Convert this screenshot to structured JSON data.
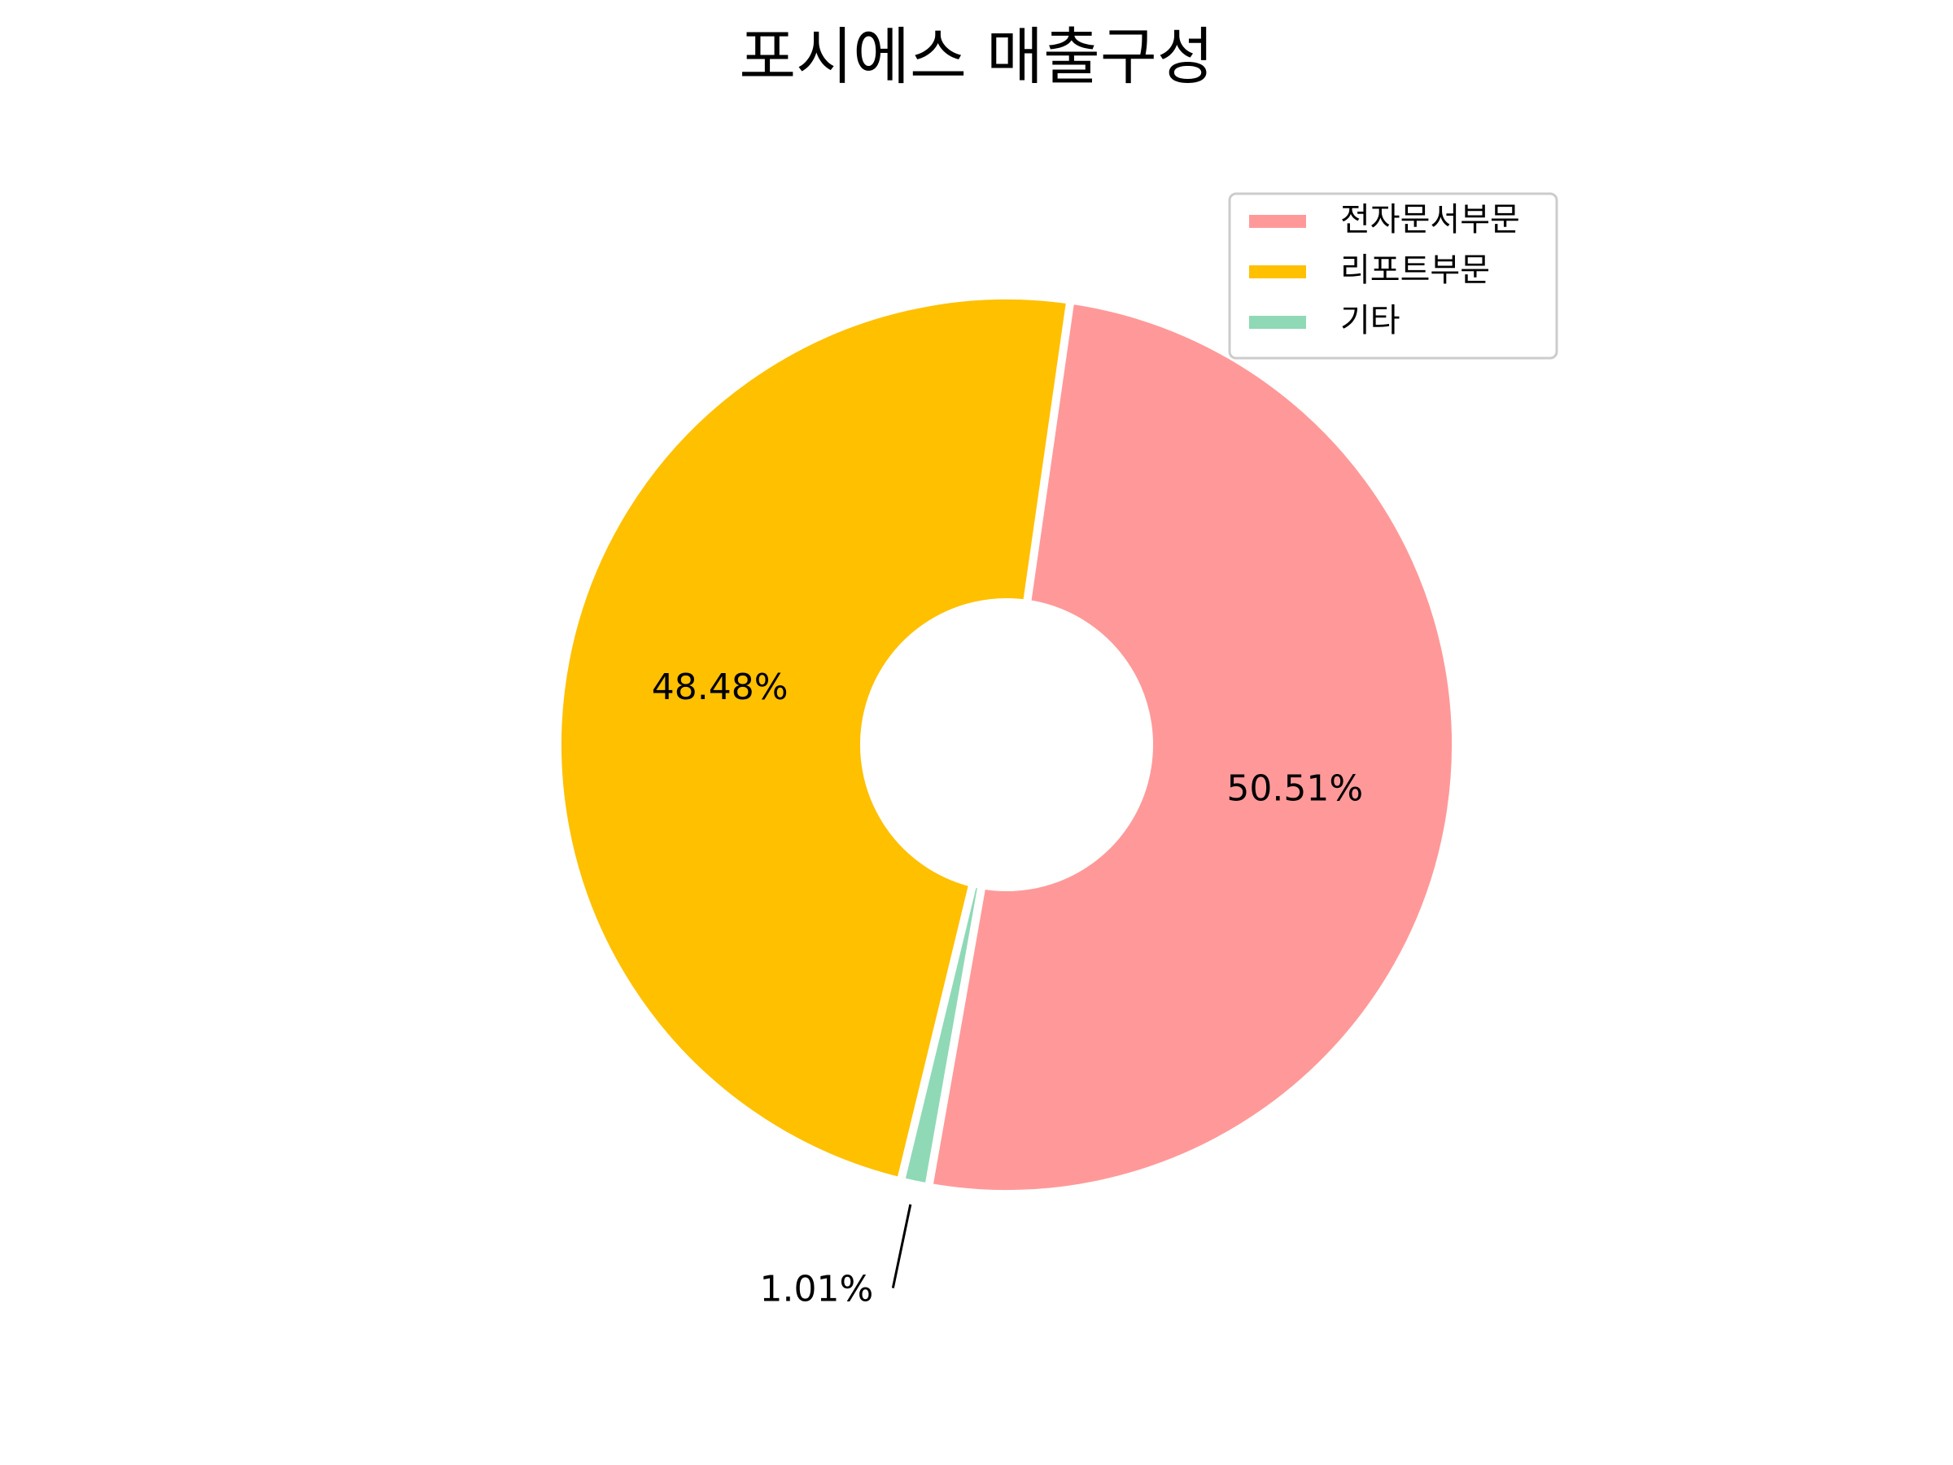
{
  "chart_data": {
    "type": "pie",
    "title": "포시에스 매출구성",
    "donut": true,
    "categories": [
      "전자문서부문",
      "리포트부문",
      "기타"
    ],
    "values": [
      50.51,
      48.48,
      1.01
    ],
    "labels": [
      "50.51%",
      "48.48%",
      "1.01%"
    ],
    "colors": [
      "#ff9999",
      "#ffc000",
      "#8fd9b6"
    ],
    "legend_position": "top-right",
    "start_angle_deg": 260,
    "direction": "counterclockwise"
  }
}
